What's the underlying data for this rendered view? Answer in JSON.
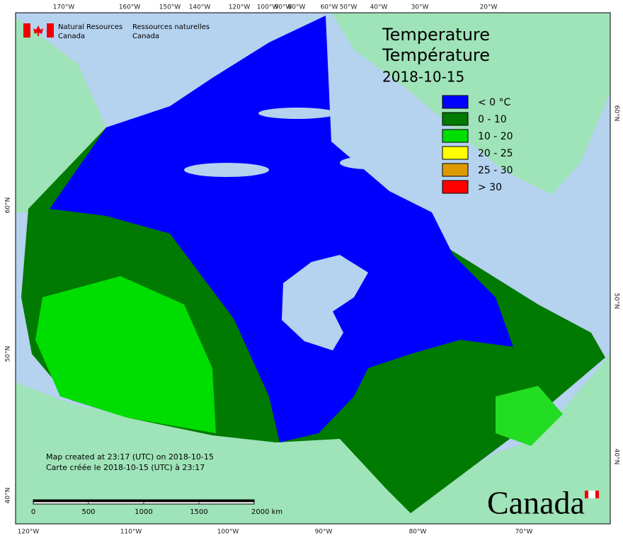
{
  "header": {
    "agency_en": [
      "Natural Resources",
      "Canada"
    ],
    "agency_fr": [
      "Ressources naturelles",
      "Canada"
    ],
    "title": "Temperature",
    "title_fr": "Température",
    "date": "2018-10-15"
  },
  "legend": [
    {
      "label": "< 0 °C",
      "color": "#0000ff"
    },
    {
      "label": "0 - 10",
      "color": "#007a00"
    },
    {
      "label": "10 - 20",
      "color": "#00dd00"
    },
    {
      "label": "20 - 25",
      "color": "#ffff00"
    },
    {
      "label": "25 - 30",
      "color": "#dd9900"
    },
    {
      "label": "> 30",
      "color": "#ff0000"
    }
  ],
  "graticule": {
    "top": [
      "170°W",
      "160°W",
      "150°W",
      "140°W",
      "120°W",
      "100°W",
      "90°W",
      "80°W",
      "60°W",
      "50°W",
      "40°W",
      "30°W",
      "20°W"
    ],
    "bottom": [
      "120°W",
      "110°W",
      "100°W",
      "90°W",
      "80°W",
      "70°W"
    ],
    "left": [
      "60°N",
      "50°N",
      "40°N"
    ],
    "right": [
      "60°N",
      "50°N",
      "40°N"
    ]
  },
  "credits": [
    "Map created at 23:17 (UTC) on 2018-10-15",
    "Carte créée le 2018-10-15 (UTC) à 23:17"
  ],
  "scale_bar": [
    "0",
    "500",
    "1000",
    "1500",
    "2000 km"
  ],
  "wordmark": "Canada"
}
